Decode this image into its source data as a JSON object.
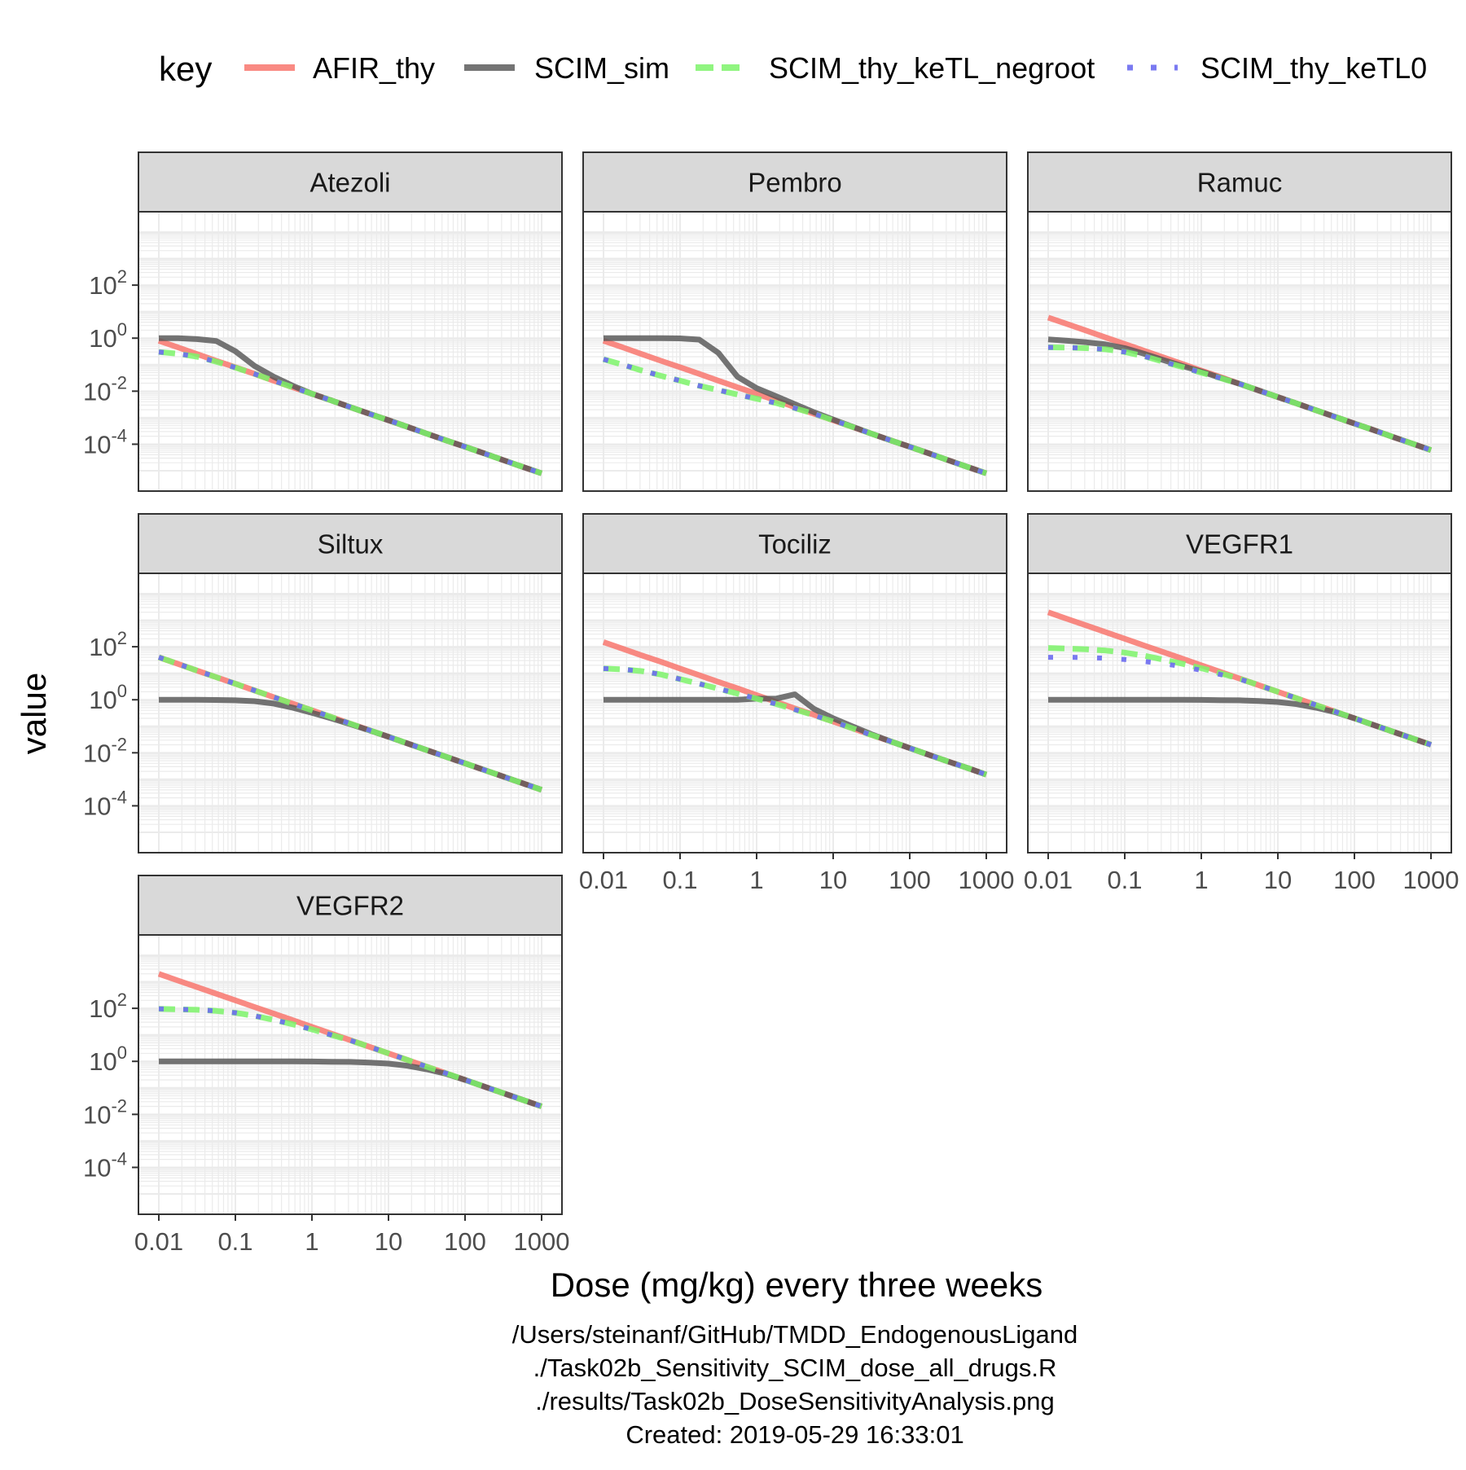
{
  "chart_data": {
    "type": "line",
    "facet": true,
    "xlabel": "Dose (mg/kg) every three weeks",
    "ylabel": "value",
    "x_scale": "log10",
    "y_scale": "log10",
    "xlim": [
      0.01,
      1000
    ],
    "ylim": [
      1e-05,
      10000
    ],
    "x_ticks": [
      0.01,
      0.1,
      1,
      10,
      100,
      1000
    ],
    "x_tick_labels": [
      "0.01",
      "0.1",
      "1",
      "10",
      "100",
      "1000"
    ],
    "y_ticks": [
      0.0001,
      0.01,
      1,
      100
    ],
    "y_tick_labels": [
      {
        "base": "10",
        "exp": "-4"
      },
      {
        "base": "10",
        "exp": "-2"
      },
      {
        "base": "10",
        "exp": "0"
      },
      {
        "base": "10",
        "exp": "2"
      }
    ],
    "grid": true,
    "legend": {
      "title": "key",
      "position": "top",
      "entries": [
        {
          "name": "AFIR_thy",
          "color": "#f8766d",
          "style": "solid"
        },
        {
          "name": "SCIM_sim",
          "color": "#555555",
          "style": "solid"
        },
        {
          "name": "SCIM_thy_keTL_negroot",
          "color": "#7cf36a",
          "style": "dashed"
        },
        {
          "name": "SCIM_thy_keTL0",
          "color": "#6b6bf0",
          "style": "dotted"
        }
      ]
    },
    "x": [
      0.01,
      0.0178,
      0.0316,
      0.0562,
      0.1,
      0.178,
      0.316,
      0.562,
      1,
      1.78,
      3.16,
      5.62,
      10,
      17.8,
      31.6,
      56.2,
      100,
      178,
      316,
      562,
      1000
    ],
    "panels": [
      {
        "title": "Atezoli",
        "series": [
          {
            "name": "AFIR_thy",
            "values": [
              0.8,
              0.45,
              0.25,
              0.14,
              0.08,
              0.045,
              0.025,
              0.014,
              0.008,
              0.0045,
              0.0025,
              0.0014,
              0.0008,
              0.00045,
              0.00025,
              0.00014,
              8e-05,
              4.5e-05,
              2.5e-05,
              1.4e-05,
              8e-06
            ]
          },
          {
            "name": "SCIM_sim",
            "values": [
              1.0,
              1.0,
              0.92,
              0.78,
              0.32,
              0.09,
              0.035,
              0.016,
              0.008,
              0.0045,
              0.0025,
              0.0014,
              0.0008,
              0.00045,
              0.00025,
              0.00014,
              8e-05,
              4.5e-05,
              2.5e-05,
              1.4e-05,
              8e-06
            ]
          },
          {
            "name": "SCIM_thy_keTL_negroot",
            "values": [
              0.3,
              0.26,
              0.2,
              0.13,
              0.078,
              0.045,
              0.025,
              0.014,
              0.008,
              0.0045,
              0.0025,
              0.0014,
              0.0008,
              0.00045,
              0.00025,
              0.00014,
              8e-05,
              4.5e-05,
              2.5e-05,
              1.4e-05,
              8e-06
            ]
          },
          {
            "name": "SCIM_thy_keTL0",
            "values": [
              0.3,
              0.26,
              0.2,
              0.13,
              0.078,
              0.045,
              0.025,
              0.014,
              0.008,
              0.0045,
              0.0025,
              0.0014,
              0.0008,
              0.00045,
              0.00025,
              0.00014,
              8e-05,
              4.5e-05,
              2.5e-05,
              1.4e-05,
              8e-06
            ]
          }
        ]
      },
      {
        "title": "Pembro",
        "series": [
          {
            "name": "AFIR_thy",
            "values": [
              0.8,
              0.45,
              0.25,
              0.14,
              0.08,
              0.045,
              0.025,
              0.014,
              0.008,
              0.0045,
              0.0025,
              0.0014,
              0.0008,
              0.00045,
              0.00025,
              0.00014,
              8e-05,
              4.5e-05,
              2.5e-05,
              1.4e-05,
              8e-06
            ]
          },
          {
            "name": "SCIM_sim",
            "values": [
              1.0,
              1.0,
              1.0,
              1.0,
              0.98,
              0.88,
              0.28,
              0.035,
              0.013,
              0.0065,
              0.0032,
              0.0016,
              0.00085,
              0.00046,
              0.00025,
              0.00014,
              8e-05,
              4.5e-05,
              2.5e-05,
              1.4e-05,
              8e-06
            ]
          },
          {
            "name": "SCIM_thy_keTL_negroot",
            "values": [
              0.16,
              0.1,
              0.06,
              0.038,
              0.025,
              0.016,
              0.011,
              0.0075,
              0.0052,
              0.0036,
              0.0023,
              0.0014,
              0.0008,
              0.00045,
              0.00025,
              0.00014,
              8e-05,
              4.5e-05,
              2.5e-05,
              1.4e-05,
              8e-06
            ]
          },
          {
            "name": "SCIM_thy_keTL0",
            "values": [
              0.16,
              0.1,
              0.06,
              0.038,
              0.025,
              0.016,
              0.011,
              0.0075,
              0.0052,
              0.0036,
              0.0023,
              0.0014,
              0.0008,
              0.00045,
              0.00025,
              0.00014,
              8e-05,
              4.5e-05,
              2.5e-05,
              1.4e-05,
              8e-06
            ]
          }
        ]
      },
      {
        "title": "Ramuc",
        "series": [
          {
            "name": "AFIR_thy",
            "values": [
              6.0,
              3.4,
              1.9,
              1.07,
              0.6,
              0.34,
              0.19,
              0.107,
              0.06,
              0.034,
              0.019,
              0.0107,
              0.006,
              0.0034,
              0.0019,
              0.00107,
              0.0006,
              0.00034,
              0.00019,
              0.000107,
              6e-05
            ]
          },
          {
            "name": "SCIM_sim",
            "values": [
              0.9,
              0.8,
              0.7,
              0.58,
              0.42,
              0.26,
              0.15,
              0.09,
              0.055,
              0.032,
              0.019,
              0.0107,
              0.006,
              0.0034,
              0.0019,
              0.00107,
              0.0006,
              0.00034,
              0.00019,
              0.000107,
              6e-05
            ]
          },
          {
            "name": "SCIM_thy_keTL_negroot",
            "values": [
              0.45,
              0.44,
              0.42,
              0.38,
              0.3,
              0.21,
              0.13,
              0.082,
              0.05,
              0.031,
              0.019,
              0.0107,
              0.006,
              0.0034,
              0.0019,
              0.00107,
              0.0006,
              0.00034,
              0.00019,
              0.000107,
              6e-05
            ]
          },
          {
            "name": "SCIM_thy_keTL0",
            "values": [
              0.45,
              0.44,
              0.42,
              0.38,
              0.3,
              0.21,
              0.13,
              0.082,
              0.05,
              0.031,
              0.019,
              0.0107,
              0.006,
              0.0034,
              0.0019,
              0.00107,
              0.0006,
              0.00034,
              0.00019,
              0.000107,
              6e-05
            ]
          }
        ]
      },
      {
        "title": "Siltux",
        "series": [
          {
            "name": "AFIR_thy",
            "values": [
              40,
              22.5,
              12.6,
              7.1,
              4.0,
              2.25,
              1.26,
              0.71,
              0.4,
              0.225,
              0.126,
              0.071,
              0.04,
              0.0225,
              0.0126,
              0.0071,
              0.004,
              0.00225,
              0.00126,
              0.00071,
              0.0004
            ]
          },
          {
            "name": "SCIM_sim",
            "values": [
              1.0,
              1.0,
              1.0,
              0.98,
              0.95,
              0.88,
              0.72,
              0.5,
              0.32,
              0.2,
              0.12,
              0.07,
              0.04,
              0.0225,
              0.0126,
              0.0071,
              0.004,
              0.00225,
              0.00126,
              0.00071,
              0.0004
            ]
          },
          {
            "name": "SCIM_thy_keTL_negroot",
            "values": [
              40,
              22.5,
              12.6,
              7.1,
              4.0,
              2.25,
              1.26,
              0.71,
              0.4,
              0.225,
              0.126,
              0.071,
              0.04,
              0.0225,
              0.0126,
              0.0071,
              0.004,
              0.00225,
              0.00126,
              0.00071,
              0.0004
            ]
          },
          {
            "name": "SCIM_thy_keTL0",
            "values": [
              40,
              22.5,
              12.6,
              7.1,
              4.0,
              2.25,
              1.26,
              0.71,
              0.4,
              0.225,
              0.126,
              0.071,
              0.04,
              0.0225,
              0.0126,
              0.0071,
              0.004,
              0.00225,
              0.00126,
              0.00071,
              0.0004
            ]
          }
        ]
      },
      {
        "title": "Tociliz",
        "series": [
          {
            "name": "AFIR_thy",
            "values": [
              150,
              84,
              47,
              27,
              15,
              8.4,
              4.7,
              2.7,
              1.5,
              0.84,
              0.47,
              0.27,
              0.15,
              0.084,
              0.047,
              0.027,
              0.015,
              0.0084,
              0.0047,
              0.0027,
              0.0015
            ]
          },
          {
            "name": "SCIM_sim",
            "values": [
              1.0,
              1.0,
              1.0,
              1.0,
              1.0,
              1.0,
              1.0,
              1.0,
              1.1,
              1.1,
              1.6,
              0.45,
              0.2,
              0.1,
              0.05,
              0.027,
              0.015,
              0.0084,
              0.0047,
              0.0027,
              0.0015
            ]
          },
          {
            "name": "SCIM_thy_keTL_negroot",
            "values": [
              15,
              14,
              12,
              9,
              6,
              4,
              2.6,
              1.7,
              1.1,
              0.7,
              0.43,
              0.26,
              0.15,
              0.084,
              0.047,
              0.027,
              0.015,
              0.0084,
              0.0047,
              0.0027,
              0.0015
            ]
          },
          {
            "name": "SCIM_thy_keTL0",
            "values": [
              15,
              14,
              12,
              9,
              6,
              4,
              2.6,
              1.7,
              1.1,
              0.7,
              0.43,
              0.26,
              0.15,
              0.084,
              0.047,
              0.027,
              0.015,
              0.0084,
              0.0047,
              0.0027,
              0.0015
            ]
          }
        ]
      },
      {
        "title": "VEGFR1",
        "series": [
          {
            "name": "AFIR_thy",
            "values": [
              2000,
              1120,
              630,
              356,
              200,
              112,
              63,
              35.6,
              20,
              11.2,
              6.3,
              3.56,
              2.0,
              1.12,
              0.63,
              0.356,
              0.2,
              0.112,
              0.063,
              0.0356,
              0.02
            ]
          },
          {
            "name": "SCIM_sim",
            "values": [
              1.0,
              1.0,
              1.0,
              1.0,
              1.0,
              1.0,
              1.0,
              1.0,
              0.99,
              0.97,
              0.95,
              0.9,
              0.82,
              0.68,
              0.5,
              0.34,
              0.2,
              0.112,
              0.063,
              0.0356,
              0.02
            ]
          },
          {
            "name": "SCIM_thy_keTL_negroot",
            "values": [
              90,
              85,
              80,
              72,
              60,
              46,
              33,
              23,
              15.5,
              10,
              6.2,
              3.56,
              2.0,
              1.12,
              0.63,
              0.356,
              0.2,
              0.112,
              0.063,
              0.0356,
              0.02
            ]
          },
          {
            "name": "SCIM_thy_keTL0",
            "values": [
              40,
              40,
              39,
              37,
              33,
              28,
              23,
              18,
              13,
              9,
              6.0,
              3.56,
              2.0,
              1.12,
              0.63,
              0.356,
              0.2,
              0.112,
              0.063,
              0.0356,
              0.02
            ]
          }
        ]
      },
      {
        "title": "VEGFR2",
        "series": [
          {
            "name": "AFIR_thy",
            "values": [
              2000,
              1120,
              630,
              356,
              200,
              112,
              63,
              35.6,
              20,
              11.2,
              6.3,
              3.56,
              2.0,
              1.12,
              0.63,
              0.356,
              0.2,
              0.112,
              0.063,
              0.0356,
              0.02
            ]
          },
          {
            "name": "SCIM_sim",
            "values": [
              1.0,
              1.0,
              1.0,
              1.0,
              1.0,
              1.0,
              1.0,
              1.0,
              0.99,
              0.97,
              0.95,
              0.9,
              0.82,
              0.68,
              0.5,
              0.34,
              0.2,
              0.112,
              0.063,
              0.0356,
              0.02
            ]
          },
          {
            "name": "SCIM_thy_keTL_negroot",
            "values": [
              95,
              92,
              88,
              80,
              68,
              52,
              37,
              25,
              16,
              10,
              6.2,
              3.56,
              2.0,
              1.12,
              0.63,
              0.356,
              0.2,
              0.112,
              0.063,
              0.0356,
              0.02
            ]
          },
          {
            "name": "SCIM_thy_keTL0",
            "values": [
              95,
              92,
              88,
              80,
              68,
              52,
              37,
              25,
              16,
              10,
              6.2,
              3.56,
              2.0,
              1.12,
              0.63,
              0.356,
              0.2,
              0.112,
              0.063,
              0.0356,
              0.02
            ]
          }
        ]
      }
    ],
    "caption": [
      "/Users/steinanf/GitHub/TMDD_EndogenousLigand",
      "./Task02b_Sensitivity_SCIM_dose_all_drugs.R",
      "./results/Task02b_DoseSensitivityAnalysis.png",
      "Created: 2019-05-29 16:33:01"
    ]
  }
}
